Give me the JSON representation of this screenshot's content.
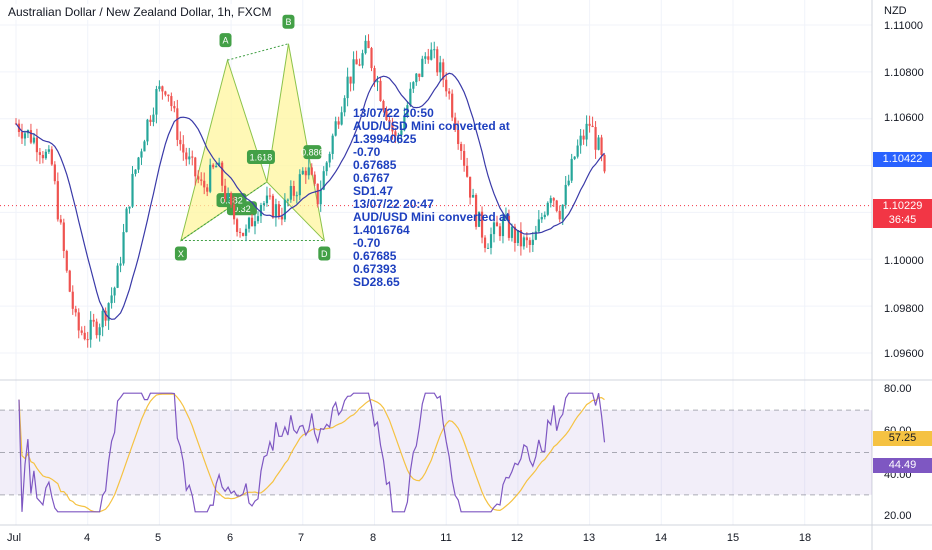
{
  "header": {
    "title": "Australian Dollar / New Zealand Dollar, 1h, FXCM",
    "currency": "NZD"
  },
  "price_axis": {
    "labels": [
      "1.11000",
      "1.10800",
      "1.10600",
      "1.10000",
      "1.09800",
      "1.09600"
    ],
    "badges": {
      "ma_value": "1.10422",
      "last_price": "1.10229",
      "countdown": "36:45"
    }
  },
  "rsi_axis": {
    "labels": [
      "80.00",
      "60.00",
      "40.00",
      "20.00"
    ],
    "badges": {
      "rsi_ma": "57.25",
      "rsi": "44.49"
    }
  },
  "date_axis": [
    "Jul",
    "4",
    "5",
    "6",
    "7",
    "8",
    "11",
    "12",
    "13",
    "14",
    "15",
    "18"
  ],
  "annotation": {
    "lines": [
      "13/07/22 20:50",
      "AUD/USD Mini converted at",
      "1.39940625",
      "-0.70",
      "0.67685",
      "0.6767",
      "SD1.47",
      "13/07/22 20:47",
      "AUD/USD Mini converted at",
      "1.4016764",
      "-0.70",
      "0.67685",
      "0.67393",
      "SD28.65"
    ]
  },
  "pattern_tags": [
    "X",
    "A",
    "B",
    "C",
    "D",
    "0.382",
    "1.618",
    "0.32",
    "0.886"
  ],
  "colors": {
    "up": "#26a69a",
    "down": "#ef5350",
    "ma": "#3a3aa8",
    "rsi": "#7e57c2",
    "rsi_ma": "#f5c242",
    "pattern_fill": "#fff59d",
    "pattern_tag": "#43a047",
    "ma_badge": "#2962ff",
    "price_badge": "#f23645"
  },
  "chart_data": [
    {
      "type": "candlestick",
      "title": "Australian Dollar / New Zealand Dollar, 1h, FXCM",
      "ylabel": "NZD",
      "ylim": [
        1.0955,
        1.1105
      ],
      "x_dates": [
        "Jul",
        "4",
        "5",
        "6",
        "7",
        "8",
        "11",
        "12",
        "13",
        "14",
        "15",
        "18"
      ],
      "close_path": [
        [
          0,
          1.1058
        ],
        [
          0.3,
          1.105
        ],
        [
          0.5,
          1.104
        ],
        [
          0.7,
          1.0995
        ],
        [
          0.85,
          1.097
        ],
        [
          1.0,
          1.0968
        ],
        [
          1.2,
          1.0975
        ],
        [
          1.4,
          1.099
        ],
        [
          1.6,
          1.103
        ],
        [
          1.8,
          1.1055
        ],
        [
          1.95,
          1.107
        ],
        [
          2.1,
          1.1075
        ],
        [
          2.3,
          1.1048
        ],
        [
          2.6,
          1.103
        ],
        [
          2.8,
          1.104
        ],
        [
          3.0,
          1.102
        ],
        [
          3.2,
          1.101
        ],
        [
          3.4,
          1.1025
        ],
        [
          3.7,
          1.102
        ],
        [
          3.9,
          1.103
        ],
        [
          4.05,
          1.104
        ],
        [
          4.2,
          1.1025
        ],
        [
          4.4,
          1.105
        ],
        [
          4.6,
          1.1075
        ],
        [
          4.9,
          1.109
        ],
        [
          5.1,
          1.107
        ],
        [
          5.3,
          1.105
        ],
        [
          5.5,
          1.107
        ],
        [
          5.75,
          1.109
        ],
        [
          6.0,
          1.1075
        ],
        [
          6.2,
          1.105
        ],
        [
          6.4,
          1.102
        ],
        [
          6.55,
          1.1008
        ],
        [
          6.8,
          1.1015
        ],
        [
          7.0,
          1.1008
        ],
        [
          7.2,
          1.1005
        ],
        [
          7.45,
          1.103
        ],
        [
          7.6,
          1.102
        ],
        [
          7.8,
          1.1045
        ],
        [
          8.0,
          1.1058
        ],
        [
          8.15,
          1.1045
        ],
        [
          8.25,
          1.1025
        ]
      ],
      "moving_average": "1h MA (blue)",
      "last_price": 1.10229,
      "ma_value": 1.10422,
      "harmonic_pattern": [
        [
          "X",
          2.3,
          1.1008
        ],
        [
          "A",
          2.95,
          1.1085
        ],
        [
          "B",
          3.5,
          1.1033
        ],
        [
          "C",
          3.8,
          1.1092
        ],
        [
          "D",
          4.3,
          1.1008
        ]
      ]
    },
    {
      "type": "line",
      "title": "RSI",
      "ylim": [
        20,
        80
      ],
      "bands": [
        30,
        50,
        70
      ],
      "series": [
        {
          "name": "RSI",
          "last": 44.49
        },
        {
          "name": "RSI MA",
          "last": 57.25
        }
      ]
    }
  ]
}
